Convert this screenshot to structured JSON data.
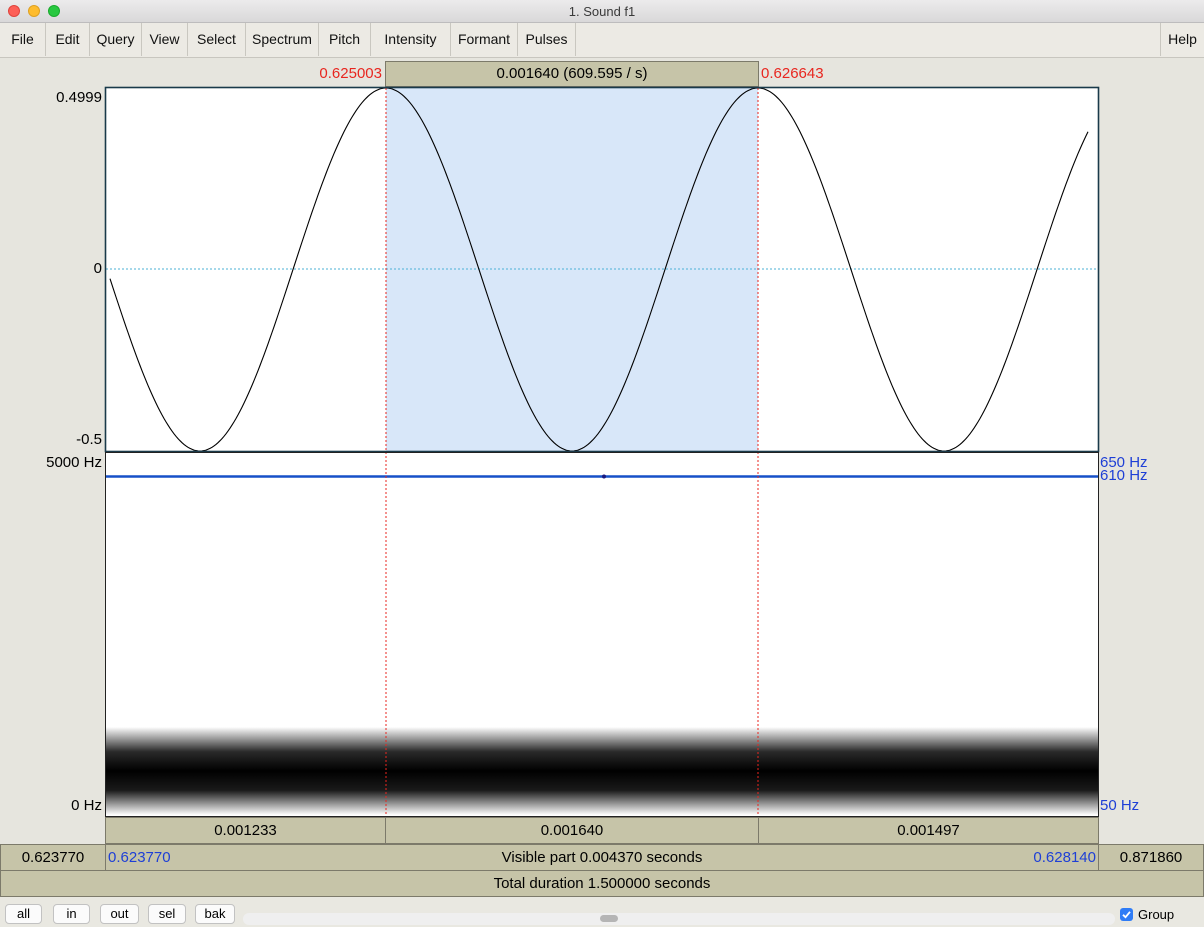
{
  "window": {
    "title": "1. Sound f1"
  },
  "menu": [
    "File",
    "Edit",
    "Query",
    "View",
    "Select",
    "Spectrum",
    "Pitch",
    "Intensity",
    "Formant",
    "Pulses"
  ],
  "help_label": "Help",
  "selection": {
    "start": "0.625003",
    "end": "0.626643",
    "duration_label": "0.001640 (609.595 / s)"
  },
  "waveform": {
    "y_max": "0.4999",
    "y_zero": "0",
    "y_min": "-0.5"
  },
  "spectrogram": {
    "freq_top": "5000 Hz",
    "freq_bottom": "0 Hz",
    "pitch_top": "650 Hz",
    "pitch_value": "610 Hz",
    "pitch_bottom": "50 Hz"
  },
  "segments": [
    "0.001233",
    "0.001640",
    "0.001497"
  ],
  "visible": {
    "left_outside": "0.623770",
    "start": "0.623770",
    "label": "Visible part 0.004370 seconds",
    "end": "0.628140",
    "right_outside": "0.871860"
  },
  "total_label": "Total duration 1.500000 seconds",
  "buttons": [
    "all",
    "in",
    "out",
    "sel",
    "bak"
  ],
  "group": {
    "label": "Group",
    "checked": true
  },
  "colors": {
    "selection": "#d8e7f9",
    "cursor": "#e8261f",
    "pitch": "#1650c8",
    "text_blue": "#1e3fd6",
    "cell_bg": "#c6c4a8"
  }
}
